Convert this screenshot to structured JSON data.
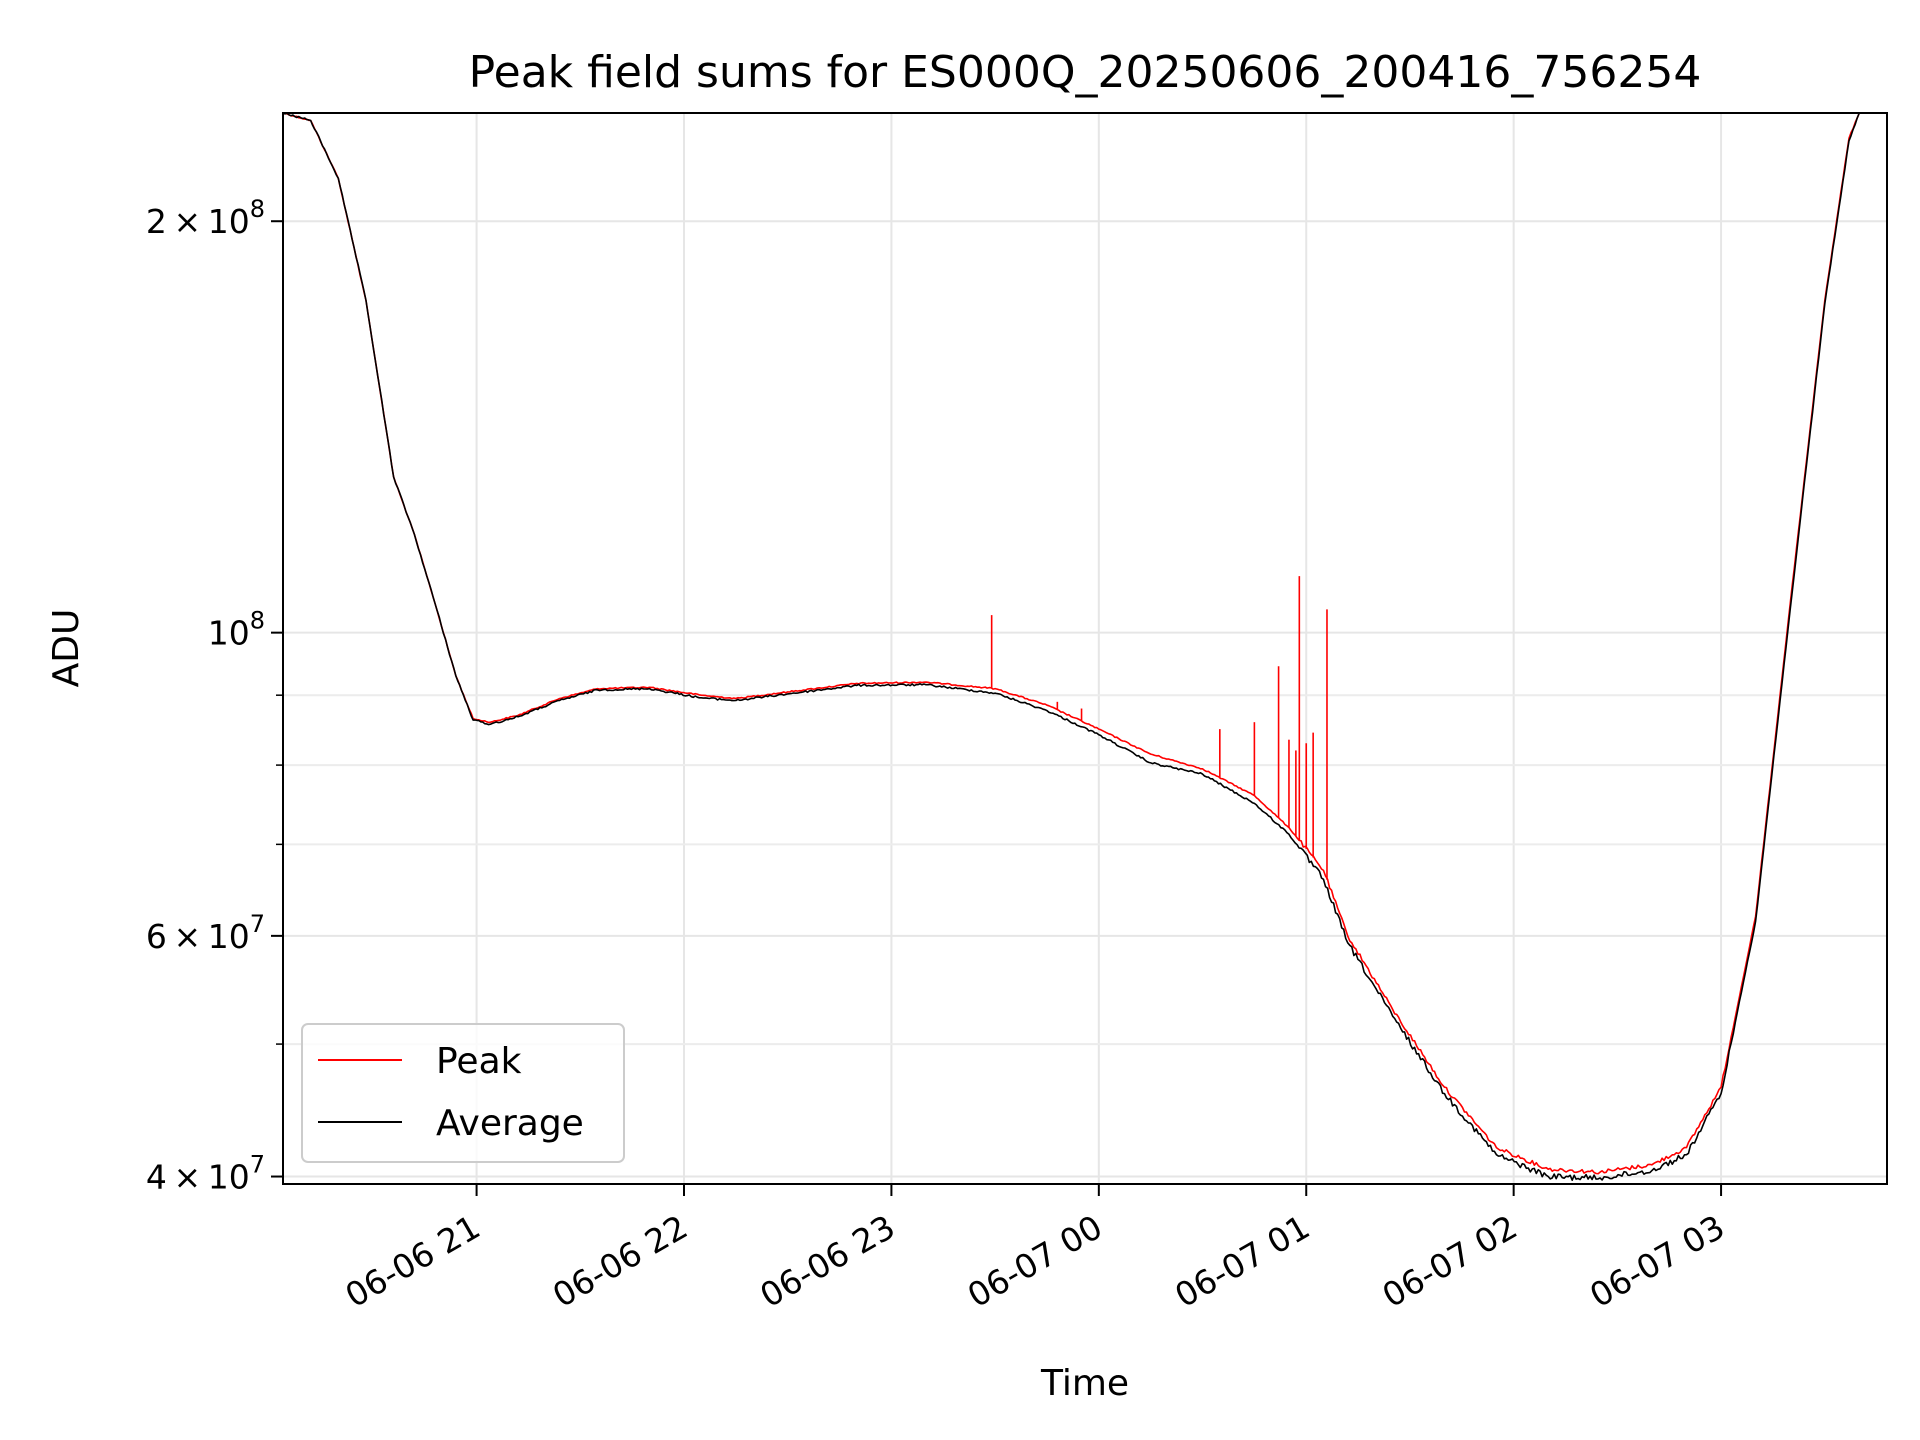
{
  "chart_data": {
    "type": "line",
    "title": "Peak field sums for ES000Q_20250606_200416_756254",
    "xlabel": "Time",
    "ylabel": "ADU",
    "y_scale": "log",
    "ylim": [
      39500000,
      240000000
    ],
    "xlim": [
      "2025-06-06 20:04",
      "2025-06-07 03:48"
    ],
    "grid": true,
    "legend_position": "lower left",
    "x_ticks": [
      {
        "t": "2025-06-06 21:00",
        "label": "06-06 21"
      },
      {
        "t": "2025-06-06 22:00",
        "label": "06-06 22"
      },
      {
        "t": "2025-06-06 23:00",
        "label": "06-06 23"
      },
      {
        "t": "2025-06-07 00:00",
        "label": "06-07 00"
      },
      {
        "t": "2025-06-07 01:00",
        "label": "06-07 01"
      },
      {
        "t": "2025-06-07 02:00",
        "label": "06-07 02"
      },
      {
        "t": "2025-06-07 03:00",
        "label": "06-07 03"
      }
    ],
    "y_major_ticks": [
      {
        "value": 40000000,
        "mant": "4",
        "exp": "7"
      },
      {
        "value": 60000000,
        "mant": "6",
        "exp": "7"
      },
      {
        "value": 100000000,
        "mant": "",
        "exp": "8"
      },
      {
        "value": 200000000,
        "mant": "2",
        "exp": "8"
      }
    ],
    "y_minor_ticks": [
      50000000,
      70000000,
      80000000,
      90000000
    ],
    "series": [
      {
        "name": "Peak",
        "color": "#ff0000",
        "points": [
          [
            "2025-06-06 20:04",
            240000000
          ],
          [
            "2025-06-06 20:12",
            237000000
          ],
          [
            "2025-06-06 20:20",
            215000000
          ],
          [
            "2025-06-06 20:28",
            175000000
          ],
          [
            "2025-06-06 20:36",
            130000000
          ],
          [
            "2025-06-06 20:42",
            118000000
          ],
          [
            "2025-06-06 20:48",
            105000000
          ],
          [
            "2025-06-06 20:54",
            93000000
          ],
          [
            "2025-06-06 20:59",
            86500000
          ],
          [
            "2025-06-06 21:04",
            86000000
          ],
          [
            "2025-06-06 21:12",
            87000000
          ],
          [
            "2025-06-06 21:24",
            89500000
          ],
          [
            "2025-06-06 21:35",
            91000000
          ],
          [
            "2025-06-06 21:50",
            91200000
          ],
          [
            "2025-06-06 22:05",
            90000000
          ],
          [
            "2025-06-06 22:15",
            89500000
          ],
          [
            "2025-06-06 22:30",
            90500000
          ],
          [
            "2025-06-06 22:50",
            91800000
          ],
          [
            "2025-06-06 23:10",
            92000000
          ],
          [
            "2025-06-06 23:30",
            91000000
          ],
          [
            "2025-06-06 23:45",
            88500000
          ],
          [
            "2025-06-07 00:00",
            85000000
          ],
          [
            "2025-06-07 00:15",
            81500000
          ],
          [
            "2025-06-07 00:30",
            79500000
          ],
          [
            "2025-06-07 00:45",
            76000000
          ],
          [
            "2025-06-07 00:55",
            72000000
          ],
          [
            "2025-06-07 01:05",
            67000000
          ],
          [
            "2025-06-07 01:12",
            60000000
          ],
          [
            "2025-06-07 01:25",
            53000000
          ],
          [
            "2025-06-07 01:40",
            46500000
          ],
          [
            "2025-06-07 01:55",
            42000000
          ],
          [
            "2025-06-07 02:10",
            40500000
          ],
          [
            "2025-06-07 02:25",
            40300000
          ],
          [
            "2025-06-07 02:40",
            40800000
          ],
          [
            "2025-06-07 02:50",
            42000000
          ],
          [
            "2025-06-07 03:00",
            46500000
          ],
          [
            "2025-06-07 03:10",
            62000000
          ],
          [
            "2025-06-07 03:20",
            105000000
          ],
          [
            "2025-06-07 03:30",
            175000000
          ],
          [
            "2025-06-07 03:37",
            230000000
          ],
          [
            "2025-06-07 03:40",
            240000000
          ]
        ],
        "spikes": [
          [
            "2025-06-06 23:29",
            103000000
          ],
          [
            "2025-06-06 23:48",
            89000000
          ],
          [
            "2025-06-06 23:55",
            88000000
          ],
          [
            "2025-06-07 00:35",
            85000000
          ],
          [
            "2025-06-07 00:45",
            86000000
          ],
          [
            "2025-06-07 00:52",
            94500000
          ],
          [
            "2025-06-07 00:55",
            83500000
          ],
          [
            "2025-06-07 00:57",
            82000000
          ],
          [
            "2025-06-07 00:58",
            110000000
          ],
          [
            "2025-06-07 01:00",
            83000000
          ],
          [
            "2025-06-07 01:02",
            84500000
          ],
          [
            "2025-06-07 01:06",
            104000000
          ]
        ]
      },
      {
        "name": "Average",
        "color": "#000000",
        "points": [
          [
            "2025-06-06 20:04",
            240000000
          ],
          [
            "2025-06-06 20:12",
            237000000
          ],
          [
            "2025-06-06 20:20",
            215000000
          ],
          [
            "2025-06-06 20:28",
            175000000
          ],
          [
            "2025-06-06 20:36",
            130000000
          ],
          [
            "2025-06-06 20:42",
            118000000
          ],
          [
            "2025-06-06 20:48",
            105000000
          ],
          [
            "2025-06-06 20:54",
            93000000
          ],
          [
            "2025-06-06 20:59",
            86300000
          ],
          [
            "2025-06-06 21:04",
            85700000
          ],
          [
            "2025-06-06 21:12",
            86800000
          ],
          [
            "2025-06-06 21:24",
            89200000
          ],
          [
            "2025-06-06 21:35",
            90800000
          ],
          [
            "2025-06-06 21:50",
            91000000
          ],
          [
            "2025-06-06 22:05",
            89600000
          ],
          [
            "2025-06-06 22:15",
            89200000
          ],
          [
            "2025-06-06 22:30",
            90200000
          ],
          [
            "2025-06-06 22:50",
            91500000
          ],
          [
            "2025-06-06 23:10",
            91600000
          ],
          [
            "2025-06-06 23:30",
            90300000
          ],
          [
            "2025-06-06 23:45",
            87700000
          ],
          [
            "2025-06-07 00:00",
            84200000
          ],
          [
            "2025-06-07 00:15",
            80300000
          ],
          [
            "2025-06-07 00:30",
            78800000
          ],
          [
            "2025-06-07 00:45",
            75000000
          ],
          [
            "2025-06-07 00:55",
            71200000
          ],
          [
            "2025-06-07 01:05",
            66000000
          ],
          [
            "2025-06-07 01:12",
            59300000
          ],
          [
            "2025-06-07 01:25",
            52400000
          ],
          [
            "2025-06-07 01:40",
            46000000
          ],
          [
            "2025-06-07 01:55",
            41500000
          ],
          [
            "2025-06-07 02:10",
            40000000
          ],
          [
            "2025-06-07 02:25",
            39900000
          ],
          [
            "2025-06-07 02:40",
            40400000
          ],
          [
            "2025-06-07 02:50",
            41500000
          ],
          [
            "2025-06-07 03:00",
            46000000
          ],
          [
            "2025-06-07 03:10",
            61500000
          ],
          [
            "2025-06-07 03:20",
            104000000
          ],
          [
            "2025-06-07 03:30",
            174000000
          ],
          [
            "2025-06-07 03:37",
            229000000
          ],
          [
            "2025-06-07 03:40",
            240000000
          ]
        ]
      }
    ]
  }
}
